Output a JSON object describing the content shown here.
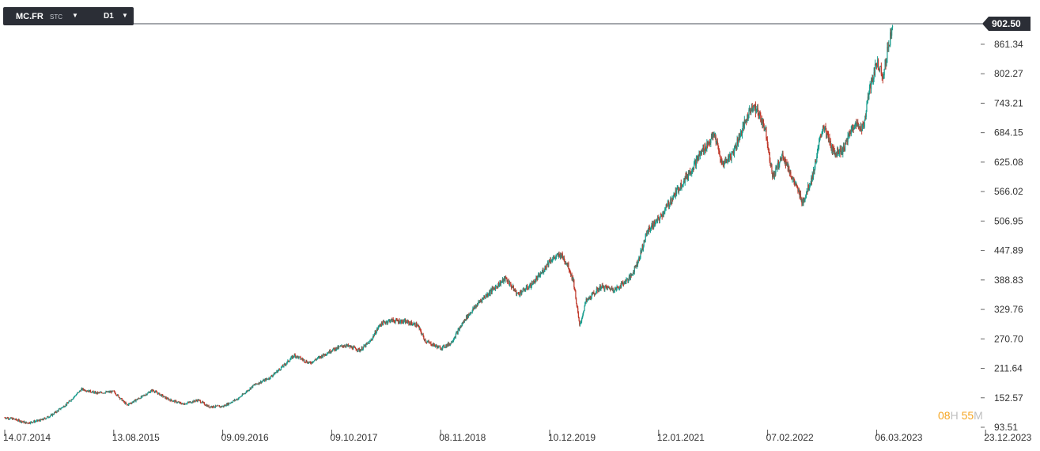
{
  "toolbar": {
    "symbol": "MC.FR",
    "mode": "STC",
    "timeframe": "D1"
  },
  "countdown": {
    "hours": "08",
    "hours_unit": "H",
    "minutes": "55",
    "minutes_unit": "M"
  },
  "chart_data": {
    "type": "candlestick",
    "last_price": 902.5,
    "last_price_label": "902.50",
    "y_ticks": [
      "861.34",
      "802.27",
      "743.21",
      "684.15",
      "625.08",
      "566.02",
      "506.95",
      "447.89",
      "388.83",
      "329.76",
      "270.70",
      "211.64",
      "152.57",
      "93.51"
    ],
    "ylim": [
      93.51,
      902.5
    ],
    "x_ticks": [
      "14.07.2014",
      "13.08.2015",
      "09.09.2016",
      "09.10.2017",
      "08.11.2018",
      "10.12.2019",
      "12.01.2021",
      "07.02.2022",
      "06.03.2023",
      "23.12.2023"
    ],
    "x_tick_years": [
      2014.53,
      2015.62,
      2016.69,
      2017.77,
      2018.85,
      2019.94,
      2021.03,
      2022.1,
      2023.18,
      2023.98
    ],
    "price_path": [
      [
        2014.53,
        113
      ],
      [
        2014.62,
        110
      ],
      [
        2014.75,
        102
      ],
      [
        2014.9,
        108
      ],
      [
        2015.0,
        118
      ],
      [
        2015.15,
        140
      ],
      [
        2015.3,
        170
      ],
      [
        2015.45,
        162
      ],
      [
        2015.62,
        165
      ],
      [
        2015.75,
        138
      ],
      [
        2015.9,
        155
      ],
      [
        2016.0,
        168
      ],
      [
        2016.15,
        150
      ],
      [
        2016.3,
        140
      ],
      [
        2016.45,
        148
      ],
      [
        2016.55,
        135
      ],
      [
        2016.69,
        135
      ],
      [
        2016.85,
        152
      ],
      [
        2017.0,
        178
      ],
      [
        2017.15,
        192
      ],
      [
        2017.3,
        218
      ],
      [
        2017.4,
        238
      ],
      [
        2017.55,
        222
      ],
      [
        2017.77,
        248
      ],
      [
        2017.9,
        258
      ],
      [
        2018.05,
        248
      ],
      [
        2018.15,
        265
      ],
      [
        2018.25,
        300
      ],
      [
        2018.35,
        308
      ],
      [
        2018.5,
        305
      ],
      [
        2018.62,
        298
      ],
      [
        2018.7,
        266
      ],
      [
        2018.85,
        252
      ],
      [
        2018.95,
        262
      ],
      [
        2019.1,
        312
      ],
      [
        2019.25,
        348
      ],
      [
        2019.4,
        375
      ],
      [
        2019.5,
        392
      ],
      [
        2019.62,
        360
      ],
      [
        2019.75,
        378
      ],
      [
        2019.85,
        400
      ],
      [
        2019.94,
        428
      ],
      [
        2020.05,
        440
      ],
      [
        2020.12,
        420
      ],
      [
        2020.18,
        385
      ],
      [
        2020.24,
        295
      ],
      [
        2020.3,
        345
      ],
      [
        2020.45,
        375
      ],
      [
        2020.6,
        370
      ],
      [
        2020.75,
        395
      ],
      [
        2020.83,
        430
      ],
      [
        2020.92,
        488
      ],
      [
        2021.03,
        510
      ],
      [
        2021.15,
        548
      ],
      [
        2021.25,
        580
      ],
      [
        2021.35,
        610
      ],
      [
        2021.45,
        645
      ],
      [
        2021.58,
        680
      ],
      [
        2021.65,
        620
      ],
      [
        2021.75,
        640
      ],
      [
        2021.85,
        690
      ],
      [
        2021.95,
        740
      ],
      [
        2022.02,
        720
      ],
      [
        2022.08,
        690
      ],
      [
        2022.15,
        595
      ],
      [
        2022.25,
        640
      ],
      [
        2022.35,
        590
      ],
      [
        2022.45,
        545
      ],
      [
        2022.55,
        600
      ],
      [
        2022.65,
        700
      ],
      [
        2022.75,
        645
      ],
      [
        2022.85,
        650
      ],
      [
        2022.95,
        700
      ],
      [
        2023.05,
        695
      ],
      [
        2023.1,
        760
      ],
      [
        2023.18,
        825
      ],
      [
        2023.23,
        800
      ],
      [
        2023.26,
        850
      ],
      [
        2023.3,
        902.5
      ]
    ]
  }
}
